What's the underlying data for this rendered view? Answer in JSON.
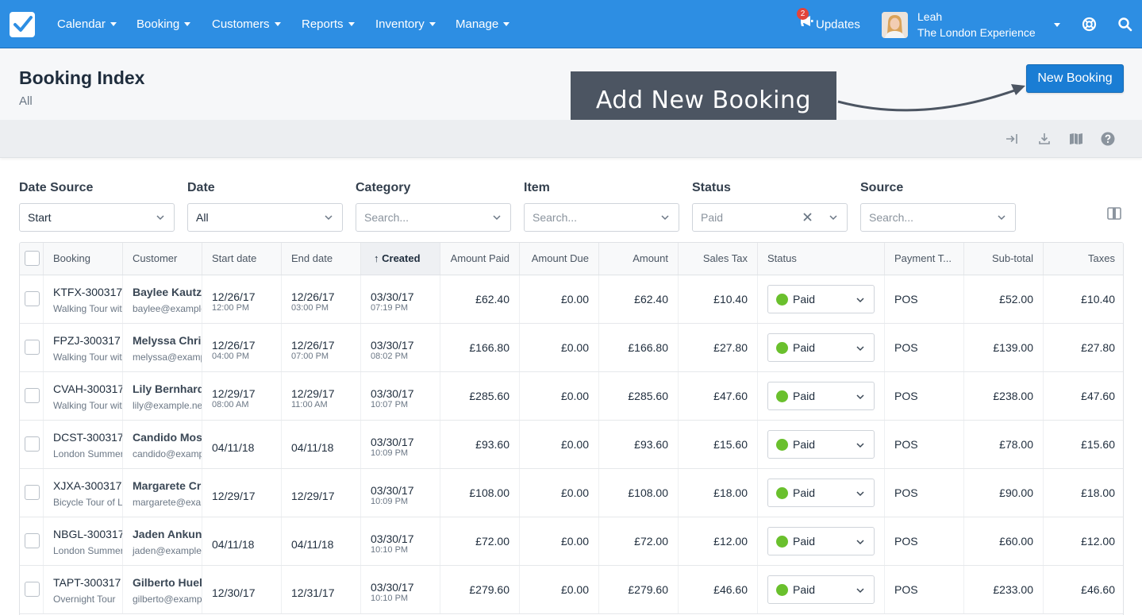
{
  "nav": {
    "items": [
      "Calendar",
      "Booking",
      "Customers",
      "Reports",
      "Inventory",
      "Manage"
    ],
    "updates_label": "Updates",
    "updates_count": "2",
    "user_name": "Leah",
    "user_company": "The London Experience"
  },
  "header": {
    "title": "Booking Index",
    "subtitle": "All",
    "new_booking_label": "New Booking",
    "callout_text": "Add New Booking"
  },
  "filters": [
    {
      "label": "Date Source",
      "value": "Start",
      "placeholder": false
    },
    {
      "label": "Date",
      "value": "All",
      "placeholder": false
    },
    {
      "label": "Category",
      "value": "Search...",
      "placeholder": true
    },
    {
      "label": "Item",
      "value": "Search...",
      "placeholder": true
    },
    {
      "label": "Status",
      "value": "Paid",
      "placeholder": true,
      "clearable": true
    },
    {
      "label": "Source",
      "value": "Search...",
      "placeholder": true
    }
  ],
  "table": {
    "columns": [
      "Booking",
      "Customer",
      "Start date",
      "End date",
      "Created",
      "Amount Paid",
      "Amount Due",
      "Amount",
      "Sales Tax",
      "Status",
      "Payment T...",
      "Sub-total",
      "Taxes"
    ],
    "sorted_column": "Created",
    "rows": [
      {
        "booking": "KTFX-300317",
        "item": "Walking Tour with Guide",
        "customer": "Baylee Kautzer",
        "email": "baylee@example.net",
        "start_date": "12/26/17",
        "start_time": "12:00 PM",
        "end_date": "12/26/17",
        "end_time": "03:00 PM",
        "created_date": "03/30/17",
        "created_time": "07:19 PM",
        "amount_paid": "£62.40",
        "amount_due": "£0.00",
        "amount": "£62.40",
        "sales_tax": "£10.40",
        "status": "Paid",
        "payment_type": "POS",
        "subtotal": "£52.00",
        "taxes": "£10.40"
      },
      {
        "booking": "FPZJ-300317",
        "item": "Walking Tour with Guide",
        "customer": "Melyssa Christiansen",
        "email": "melyssa@example.net",
        "start_date": "12/26/17",
        "start_time": "04:00 PM",
        "end_date": "12/26/17",
        "end_time": "07:00 PM",
        "created_date": "03/30/17",
        "created_time": "08:02 PM",
        "amount_paid": "£166.80",
        "amount_due": "£0.00",
        "amount": "£166.80",
        "sales_tax": "£27.80",
        "status": "Paid",
        "payment_type": "POS",
        "subtotal": "£139.00",
        "taxes": "£27.80"
      },
      {
        "booking": "CVAH-300317",
        "item": "Walking Tour with Guide",
        "customer": "Lily Bernhard",
        "email": "lily@example.net",
        "start_date": "12/29/17",
        "start_time": "08:00 AM",
        "end_date": "12/29/17",
        "end_time": "11:00 AM",
        "created_date": "03/30/17",
        "created_time": "10:07 PM",
        "amount_paid": "£285.60",
        "amount_due": "£0.00",
        "amount": "£285.60",
        "sales_tax": "£47.60",
        "status": "Paid",
        "payment_type": "POS",
        "subtotal": "£238.00",
        "taxes": "£47.60"
      },
      {
        "booking": "DCST-300317",
        "item": "London Summer Tour",
        "customer": "Candido Mosciski",
        "email": "candido@example.net",
        "start_date": "04/11/18",
        "start_time": "",
        "end_date": "04/11/18",
        "end_time": "",
        "created_date": "03/30/17",
        "created_time": "10:09 PM",
        "amount_paid": "£93.60",
        "amount_due": "£0.00",
        "amount": "£93.60",
        "sales_tax": "£15.60",
        "status": "Paid",
        "payment_type": "POS",
        "subtotal": "£78.00",
        "taxes": "£15.60"
      },
      {
        "booking": "XJXA-300317",
        "item": "Bicycle Tour of London",
        "customer": "Margarete Crooks",
        "email": "margarete@example.net",
        "start_date": "12/29/17",
        "start_time": "",
        "end_date": "12/29/17",
        "end_time": "",
        "created_date": "03/30/17",
        "created_time": "10:09 PM",
        "amount_paid": "£108.00",
        "amount_due": "£0.00",
        "amount": "£108.00",
        "sales_tax": "£18.00",
        "status": "Paid",
        "payment_type": "POS",
        "subtotal": "£90.00",
        "taxes": "£18.00"
      },
      {
        "booking": "NBGL-300317",
        "item": "London Summer Tour",
        "customer": "Jaden Ankunding",
        "email": "jaden@example.net",
        "start_date": "04/11/18",
        "start_time": "",
        "end_date": "04/11/18",
        "end_time": "",
        "created_date": "03/30/17",
        "created_time": "10:10 PM",
        "amount_paid": "£72.00",
        "amount_due": "£0.00",
        "amount": "£72.00",
        "sales_tax": "£12.00",
        "status": "Paid",
        "payment_type": "POS",
        "subtotal": "£60.00",
        "taxes": "£12.00"
      },
      {
        "booking": "TAPT-300317",
        "item": "Overnight Tour",
        "customer": "Gilberto Huels",
        "email": "gilberto@example.net",
        "start_date": "12/30/17",
        "start_time": "",
        "end_date": "12/31/17",
        "end_time": "",
        "created_date": "03/30/17",
        "created_time": "10:10 PM",
        "amount_paid": "£279.60",
        "amount_due": "£0.00",
        "amount": "£279.60",
        "sales_tax": "£46.60",
        "status": "Paid",
        "payment_type": "POS",
        "subtotal": "£233.00",
        "taxes": "£46.60"
      }
    ]
  },
  "colors": {
    "nav_bg": "#2d8ee3",
    "primary_button": "#1a7dd4",
    "callout_bg": "#4c5562",
    "paid_dot": "#6ac02d"
  }
}
